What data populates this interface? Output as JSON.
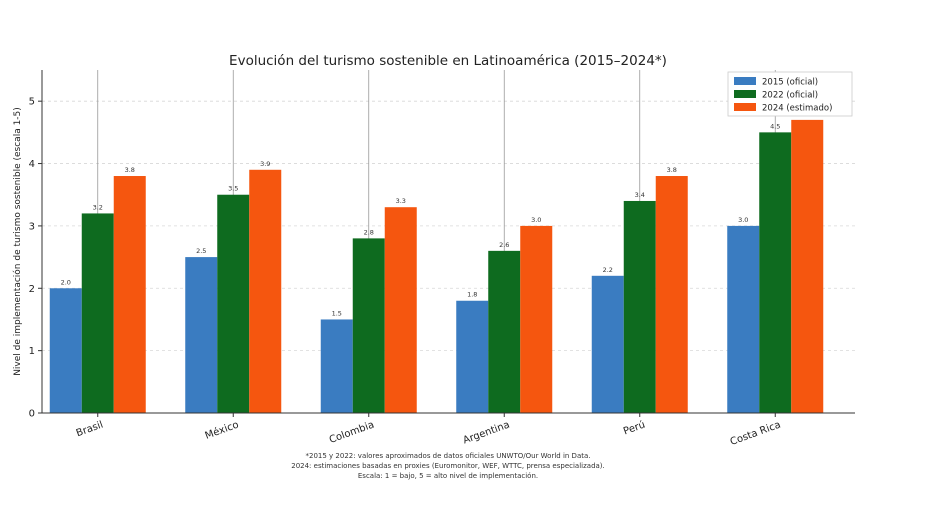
{
  "chart_data": {
    "type": "bar",
    "title": "Evolución del turismo sostenible en Latinoamérica (2015–2024*)",
    "ylabel": "Nivel de implementación de turismo sostenible (escala 1-5)",
    "xlabel": "",
    "ylim": [
      0,
      5.5
    ],
    "yticks": [
      0,
      1,
      2,
      3,
      4,
      5
    ],
    "grid": true,
    "legend_position": "top-right",
    "categories": [
      "Brasil",
      "México",
      "Colombia",
      "Argentina",
      "Perú",
      "Costa Rica"
    ],
    "series": [
      {
        "name": "2015 (oficial)",
        "color": "#3a7cc1",
        "values": [
          2.0,
          2.5,
          1.5,
          1.8,
          2.2,
          3.0
        ]
      },
      {
        "name": "2022 (oficial)",
        "color": "#0e6b1f",
        "values": [
          3.2,
          3.5,
          2.8,
          2.6,
          3.4,
          4.5
        ]
      },
      {
        "name": "2024 (estimado)",
        "color": "#f5560f",
        "values": [
          3.8,
          3.9,
          3.3,
          3.0,
          3.8,
          4.7
        ]
      }
    ],
    "footnotes": [
      "*2015 y 2022: valores aproximados de datos oficiales UNWTO/Our World in Data.",
      "2024: estimaciones basadas en proxies (Euromonitor, WEF, WTTC, prensa especializada).",
      "Escala: 1 = bajo, 5 = alto nivel de implementación."
    ]
  }
}
